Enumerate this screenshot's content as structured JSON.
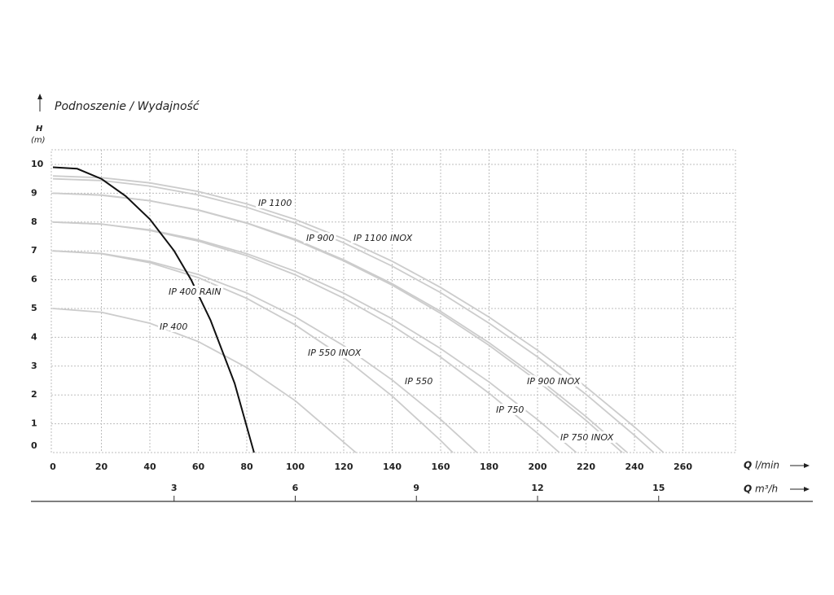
{
  "chart_data": {
    "type": "line",
    "title": "Podnoszenie / Wydajność",
    "y_label": "H",
    "y_unit": "(m)",
    "x_symbol": "Q",
    "x_unit": "l/min",
    "x2_symbol": "Q",
    "x2_unit": "m³/h",
    "xlim": [
      0,
      280
    ],
    "xticks": [
      0,
      20,
      40,
      60,
      80,
      100,
      120,
      140,
      160,
      180,
      200,
      220,
      240,
      260
    ],
    "x2lim": [
      0,
      16.8
    ],
    "x2ticks": [
      3,
      6,
      9,
      12,
      15
    ],
    "ylim": [
      0,
      10.5
    ],
    "yticks": [
      0,
      1,
      2,
      3,
      4,
      5,
      6,
      7,
      8,
      9,
      10
    ],
    "grid": true,
    "series": [
      {
        "name": "IP 1100",
        "color": "#cccccc",
        "x": [
          0,
          20,
          40,
          60,
          80,
          100,
          120,
          140,
          160,
          180,
          200,
          220,
          240,
          252
        ],
        "values": [
          9.6,
          9.54,
          9.36,
          9.06,
          8.63,
          8.09,
          7.42,
          6.64,
          5.73,
          4.7,
          3.55,
          2.28,
          0.89,
          0
        ]
      },
      {
        "name": "IP 1100 INOX",
        "color": "#cccccc",
        "x": [
          0,
          20,
          40,
          60,
          80,
          100,
          120,
          140,
          160,
          180,
          200,
          220,
          240,
          248
        ],
        "values": [
          9.5,
          9.44,
          9.25,
          8.94,
          8.51,
          7.96,
          7.28,
          6.47,
          5.55,
          4.49,
          3.32,
          2.02,
          0.6,
          0
        ]
      },
      {
        "name": "IP 900",
        "color": "#cccccc",
        "x": [
          0,
          20,
          40,
          60,
          80,
          100,
          120,
          140,
          160,
          180,
          200,
          220,
          237
        ],
        "values": [
          9,
          8.94,
          8.74,
          8.42,
          7.97,
          7.4,
          6.69,
          5.86,
          4.9,
          3.81,
          2.59,
          1.25,
          0
        ]
      },
      {
        "name": "IP 900 INOX",
        "color": "#cccccc",
        "x": [
          0,
          20,
          40,
          60,
          80,
          100,
          120,
          140,
          160,
          180,
          200,
          220,
          235
        ],
        "values": [
          9,
          8.93,
          8.74,
          8.41,
          7.96,
          7.37,
          6.65,
          5.81,
          4.83,
          3.72,
          2.48,
          1.12,
          0
        ]
      },
      {
        "name": "IP 750",
        "color": "#cccccc",
        "x": [
          0,
          20,
          40,
          60,
          80,
          100,
          120,
          140,
          160,
          180,
          200,
          209
        ],
        "values": [
          8,
          7.93,
          7.71,
          7.34,
          6.83,
          6.17,
          5.36,
          4.41,
          3.31,
          2.06,
          0.67,
          0
        ]
      },
      {
        "name": "IP 750 INOX",
        "color": "#cccccc",
        "x": [
          0,
          20,
          40,
          60,
          80,
          100,
          120,
          140,
          160,
          180,
          200,
          216
        ],
        "values": [
          8,
          7.93,
          7.73,
          7.38,
          6.9,
          6.29,
          5.53,
          4.64,
          3.61,
          2.45,
          1.14,
          0
        ]
      },
      {
        "name": "IP 550",
        "color": "#cccccc",
        "x": [
          0,
          20,
          40,
          60,
          80,
          100,
          120,
          140,
          160,
          175
        ],
        "values": [
          7,
          6.91,
          6.63,
          6.18,
          5.54,
          4.71,
          3.71,
          2.52,
          1.15,
          0
        ]
      },
      {
        "name": "IP 550 INOX",
        "color": "#cccccc",
        "x": [
          0,
          20,
          40,
          60,
          80,
          100,
          120,
          140,
          160,
          165
        ],
        "values": [
          7,
          6.9,
          6.59,
          6.07,
          5.35,
          4.43,
          3.3,
          1.96,
          0.42,
          0
        ]
      },
      {
        "name": "IP 400",
        "color": "#cccccc",
        "x": [
          0,
          20,
          40,
          60,
          80,
          100,
          125
        ],
        "values": [
          5,
          4.87,
          4.49,
          3.85,
          2.95,
          1.8,
          0
        ]
      },
      {
        "name": "IP 400 RAIN",
        "color": "#111111",
        "x": [
          0,
          10,
          20,
          30,
          40,
          50,
          57,
          65,
          75,
          83
        ],
        "values": [
          9.9,
          9.85,
          9.5,
          8.9,
          8.1,
          7,
          6,
          4.6,
          2.4,
          0
        ]
      }
    ]
  }
}
